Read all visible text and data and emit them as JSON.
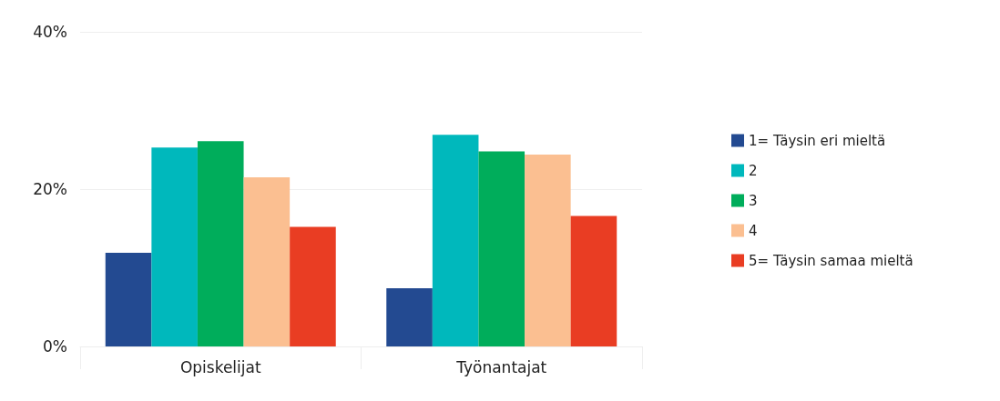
{
  "chart_data": {
    "type": "bar",
    "categories": [
      "Opiskelijat",
      "Työnantajat"
    ],
    "series": [
      {
        "name": "1= Täysin eri mieltä",
        "color": "#234a91",
        "values": [
          11.9,
          7.4
        ]
      },
      {
        "name": "2",
        "color": "#00b8bc",
        "values": [
          25.3,
          26.9
        ]
      },
      {
        "name": "3",
        "color": "#00ad5b",
        "values": [
          26.1,
          24.8
        ]
      },
      {
        "name": "4",
        "color": "#fbbf91",
        "values": [
          21.5,
          24.4
        ]
      },
      {
        "name": "5= Täysin samaa mieltä",
        "color": "#e93d23",
        "values": [
          15.2,
          16.6
        ]
      }
    ],
    "ylim": [
      0,
      40
    ],
    "yticks": [
      {
        "value": 0,
        "label": "0%"
      },
      {
        "value": 20,
        "label": "20%"
      },
      {
        "value": 40,
        "label": "40%"
      }
    ],
    "grid": "y",
    "legend": "right"
  }
}
